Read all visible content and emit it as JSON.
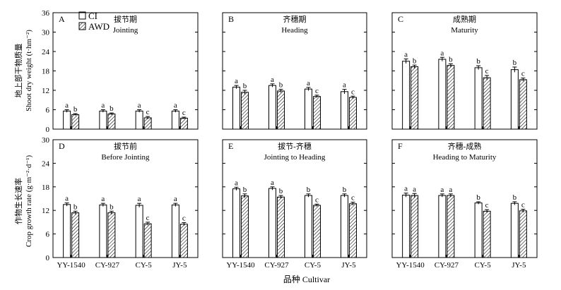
{
  "figure": {
    "x_axis_title": "品种 Cultivar",
    "y_axis_title_top_cn": "地上部干物质量",
    "y_axis_title_top_en": "Shoot dry weight (t·hm⁻²)",
    "y_axis_title_bottom_cn": "作物生长速率",
    "y_axis_title_bottom_en": "Crop growth rate (g·m⁻²·d⁻¹)",
    "legend": [
      {
        "label": "CI",
        "pattern": "open"
      },
      {
        "label": "AWD",
        "pattern": "hatched"
      }
    ]
  },
  "chart_data": [
    {
      "type": "bar",
      "letter": "A",
      "title_cn": "拔节期",
      "title_en": "Jointing",
      "categories": [
        "YY-1540",
        "CY-927",
        "CY-5",
        "JY-5"
      ],
      "ylim": [
        0,
        36
      ],
      "yticks": [
        0,
        6,
        12,
        18,
        24,
        30,
        36
      ],
      "series": [
        {
          "name": "CI",
          "values": [
            5.6,
            5.6,
            5.6,
            5.6
          ],
          "err": [
            0.4,
            0.4,
            0.4,
            0.4
          ],
          "sig": [
            "a",
            "a",
            "a",
            "a"
          ]
        },
        {
          "name": "AWD",
          "values": [
            4.5,
            4.7,
            3.5,
            3.4
          ],
          "err": [
            0.3,
            0.3,
            0.4,
            0.3
          ],
          "sig": [
            "b",
            "b",
            "c",
            "c"
          ]
        }
      ]
    },
    {
      "type": "bar",
      "letter": "B",
      "title_cn": "齐穗期",
      "title_en": "Heading",
      "categories": [
        "YY-1540",
        "CY-927",
        "CY-5",
        "JY-5"
      ],
      "ylim": [
        0,
        36
      ],
      "yticks": [
        0,
        6,
        12,
        18,
        24,
        30,
        36
      ],
      "series": [
        {
          "name": "CI",
          "values": [
            13.0,
            13.5,
            12.4,
            11.6
          ],
          "err": [
            0.5,
            0.5,
            0.5,
            0.7
          ],
          "sig": [
            "a",
            "a",
            "a",
            "a"
          ]
        },
        {
          "name": "AWD",
          "values": [
            11.4,
            11.8,
            10.1,
            9.8
          ],
          "err": [
            0.6,
            0.5,
            0.4,
            0.4
          ],
          "sig": [
            "b",
            "b",
            "c",
            "c"
          ]
        }
      ]
    },
    {
      "type": "bar",
      "letter": "C",
      "title_cn": "成熟期",
      "title_en": "Maturity",
      "categories": [
        "YY-1540",
        "CY-927",
        "CY-5",
        "JY-5"
      ],
      "ylim": [
        0,
        36
      ],
      "yticks": [
        0,
        6,
        12,
        18,
        24,
        30,
        36
      ],
      "series": [
        {
          "name": "CI",
          "values": [
            21.0,
            21.6,
            19.0,
            18.4
          ],
          "err": [
            0.7,
            0.6,
            0.6,
            0.8
          ],
          "sig": [
            "a",
            "a",
            "b",
            "b"
          ]
        },
        {
          "name": "AWD",
          "values": [
            19.3,
            19.7,
            15.9,
            15.3
          ],
          "err": [
            0.5,
            0.5,
            0.7,
            0.5
          ],
          "sig": [
            "b",
            "b",
            "c",
            "c"
          ]
        }
      ]
    },
    {
      "type": "bar",
      "letter": "D",
      "title_cn": "拔节前",
      "title_en": "Before Jointing",
      "categories": [
        "YY-1540",
        "CY-927",
        "CY-5",
        "JY-5"
      ],
      "ylim": [
        0,
        30
      ],
      "yticks": [
        0,
        6,
        12,
        18,
        24,
        30
      ],
      "series": [
        {
          "name": "CI",
          "values": [
            13.5,
            13.4,
            13.3,
            13.4
          ],
          "err": [
            0.4,
            0.4,
            0.5,
            0.4
          ],
          "sig": [
            "a",
            "a",
            "a",
            "a"
          ]
        },
        {
          "name": "AWD",
          "values": [
            11.4,
            11.4,
            8.6,
            8.5
          ],
          "err": [
            0.4,
            0.4,
            0.4,
            0.4
          ],
          "sig": [
            "b",
            "b",
            "c",
            "c"
          ]
        }
      ]
    },
    {
      "type": "bar",
      "letter": "E",
      "title_cn": "拔节-齐穗",
      "title_en": "Jointing to Heading",
      "categories": [
        "YY-1540",
        "CY-927",
        "CY-5",
        "JY-5"
      ],
      "ylim": [
        0,
        30
      ],
      "yticks": [
        0,
        6,
        12,
        18,
        24,
        30
      ],
      "series": [
        {
          "name": "CI",
          "values": [
            17.5,
            17.6,
            15.8,
            15.8
          ],
          "err": [
            0.4,
            0.4,
            0.4,
            0.4
          ],
          "sig": [
            "a",
            "a",
            "b",
            "b"
          ]
        },
        {
          "name": "AWD",
          "values": [
            15.7,
            15.4,
            13.3,
            13.7
          ],
          "err": [
            0.5,
            0.4,
            0.3,
            0.4
          ],
          "sig": [
            "b",
            "b",
            "c",
            "c"
          ]
        }
      ]
    },
    {
      "type": "bar",
      "letter": "F",
      "title_cn": "齐穗-成熟",
      "title_en": "Heading to Maturity",
      "categories": [
        "YY-1540",
        "CY-927",
        "CY-5",
        "JY-5"
      ],
      "ylim": [
        0,
        30
      ],
      "yticks": [
        0,
        6,
        12,
        18,
        24,
        30
      ],
      "series": [
        {
          "name": "CI",
          "values": [
            15.9,
            15.8,
            13.9,
            13.8
          ],
          "err": [
            0.5,
            0.4,
            0.3,
            0.4
          ],
          "sig": [
            "a",
            "a",
            "b",
            "b"
          ]
        },
        {
          "name": "AWD",
          "values": [
            15.8,
            15.8,
            11.8,
            11.9
          ],
          "err": [
            0.5,
            0.4,
            0.4,
            0.4
          ],
          "sig": [
            "a",
            "a",
            "c",
            "c"
          ]
        }
      ]
    }
  ]
}
